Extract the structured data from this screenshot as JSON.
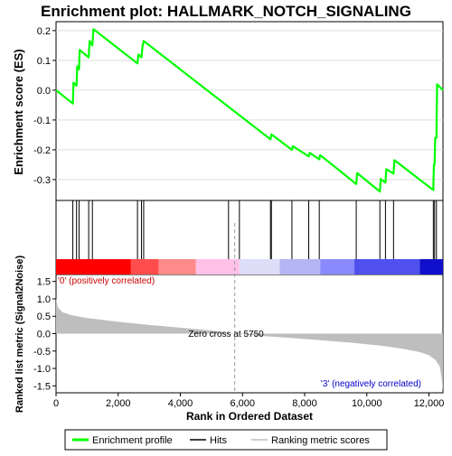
{
  "chart_data": {
    "type": "line",
    "title": "Enrichment plot: HALLMARK_NOTCH_SIGNALING",
    "top_panel": {
      "ylabel": "Enrichment score (ES)",
      "ylim": [
        -0.37,
        0.23
      ],
      "yticks": [
        -0.3,
        -0.2,
        -0.1,
        0.0,
        0.1,
        0.2
      ],
      "ytick_labels": [
        "-0.3",
        "-0.2",
        "-0.1",
        "0.0",
        "0.1",
        "0.2"
      ],
      "series": [
        {
          "name": "Enrichment profile",
          "color": "#00ff00",
          "x": [
            0,
            540,
            560,
            660,
            680,
            740,
            760,
            1050,
            1080,
            1170,
            1200,
            2620,
            2650,
            2750,
            2780,
            2820,
            6900,
            6930,
            7590,
            7620,
            8130,
            8160,
            8470,
            8500,
            9660,
            9690,
            10420,
            10450,
            10600,
            10630,
            10860,
            10890,
            12140,
            12160,
            12180,
            12200,
            12240,
            12260,
            12450
          ],
          "y": [
            0.0,
            -0.045,
            0.025,
            0.015,
            0.08,
            0.07,
            0.135,
            0.11,
            0.165,
            0.15,
            0.205,
            0.09,
            0.12,
            0.11,
            0.145,
            0.165,
            -0.165,
            -0.148,
            -0.2,
            -0.188,
            -0.222,
            -0.21,
            -0.232,
            -0.218,
            -0.315,
            -0.278,
            -0.34,
            -0.298,
            -0.31,
            -0.265,
            -0.28,
            -0.235,
            -0.335,
            -0.25,
            -0.25,
            -0.16,
            -0.16,
            0.02,
            0.0
          ]
        }
      ]
    },
    "hits": {
      "name": "Hits",
      "positions": [
        540,
        660,
        740,
        1050,
        1170,
        2620,
        2750,
        2820,
        5550,
        5900,
        6900,
        6930,
        7590,
        8130,
        8470,
        9660,
        10420,
        10600,
        10860,
        12140,
        12180,
        12240
      ]
    },
    "rank_heatmap": {
      "colors": [
        {
          "from": 0,
          "to": 2400,
          "color": "#ff0000"
        },
        {
          "from": 2400,
          "to": 3300,
          "color": "#ff4d4d"
        },
        {
          "from": 3300,
          "to": 4500,
          "color": "#ff8a8a"
        },
        {
          "from": 4500,
          "to": 5900,
          "color": "#ffc0e6"
        },
        {
          "from": 5900,
          "to": 7200,
          "color": "#ddddf7"
        },
        {
          "from": 7200,
          "to": 8500,
          "color": "#b5b5f3"
        },
        {
          "from": 8500,
          "to": 9600,
          "color": "#8a8aff"
        },
        {
          "from": 9600,
          "to": 11700,
          "color": "#5050ee"
        },
        {
          "from": 11700,
          "to": 12450,
          "color": "#1010cc"
        }
      ]
    },
    "bottom_panel": {
      "ylabel": "Ranked list metric (Signal2Noise)",
      "ylim": [
        -1.7,
        1.7
      ],
      "yticks": [
        -1.5,
        -1.0,
        -0.5,
        0.0,
        0.5,
        1.0,
        1.5
      ],
      "ytick_labels": [
        "-1.5",
        "-1.0",
        "-0.5",
        "0.0",
        "0.5",
        "1.0",
        "1.5"
      ],
      "series": [
        {
          "name": "Ranking metric scores",
          "x": [
            0,
            60,
            200,
            500,
            1000,
            2000,
            3000,
            4000,
            5000,
            5750,
            6500,
            7500,
            8500,
            9500,
            10500,
            11200,
            11700,
            12000,
            12200,
            12350,
            12400,
            12450
          ],
          "y": [
            1.02,
            0.75,
            0.62,
            0.53,
            0.45,
            0.34,
            0.25,
            0.17,
            0.09,
            0.0,
            -0.06,
            -0.12,
            -0.19,
            -0.26,
            -0.35,
            -0.44,
            -0.53,
            -0.62,
            -0.75,
            -0.95,
            -1.25,
            -1.65
          ]
        }
      ],
      "zero_cross_label": "Zero cross at 5750",
      "zero_cross_x": 5750,
      "positive_label": "'0' (positively correlated)",
      "negative_label": "'3' (negatively correlated)"
    },
    "xlabel": "Rank in Ordered Dataset",
    "xlim": [
      0,
      12450
    ],
    "xticks": [
      0,
      2000,
      4000,
      6000,
      8000,
      10000,
      12000
    ],
    "xtick_labels": [
      "0",
      "2,000",
      "4,000",
      "6,000",
      "8,000",
      "10,000",
      "12,000"
    ],
    "legend": {
      "placement": "bottom",
      "entries": [
        "Enrichment profile",
        "Hits",
        "Ranking metric scores"
      ]
    },
    "colors": {
      "profile": "#00ff00",
      "hits": "#000000",
      "metric_fill": "#bebebe",
      "positive_text": "#cc0000",
      "negative_text": "#0000cc"
    }
  }
}
